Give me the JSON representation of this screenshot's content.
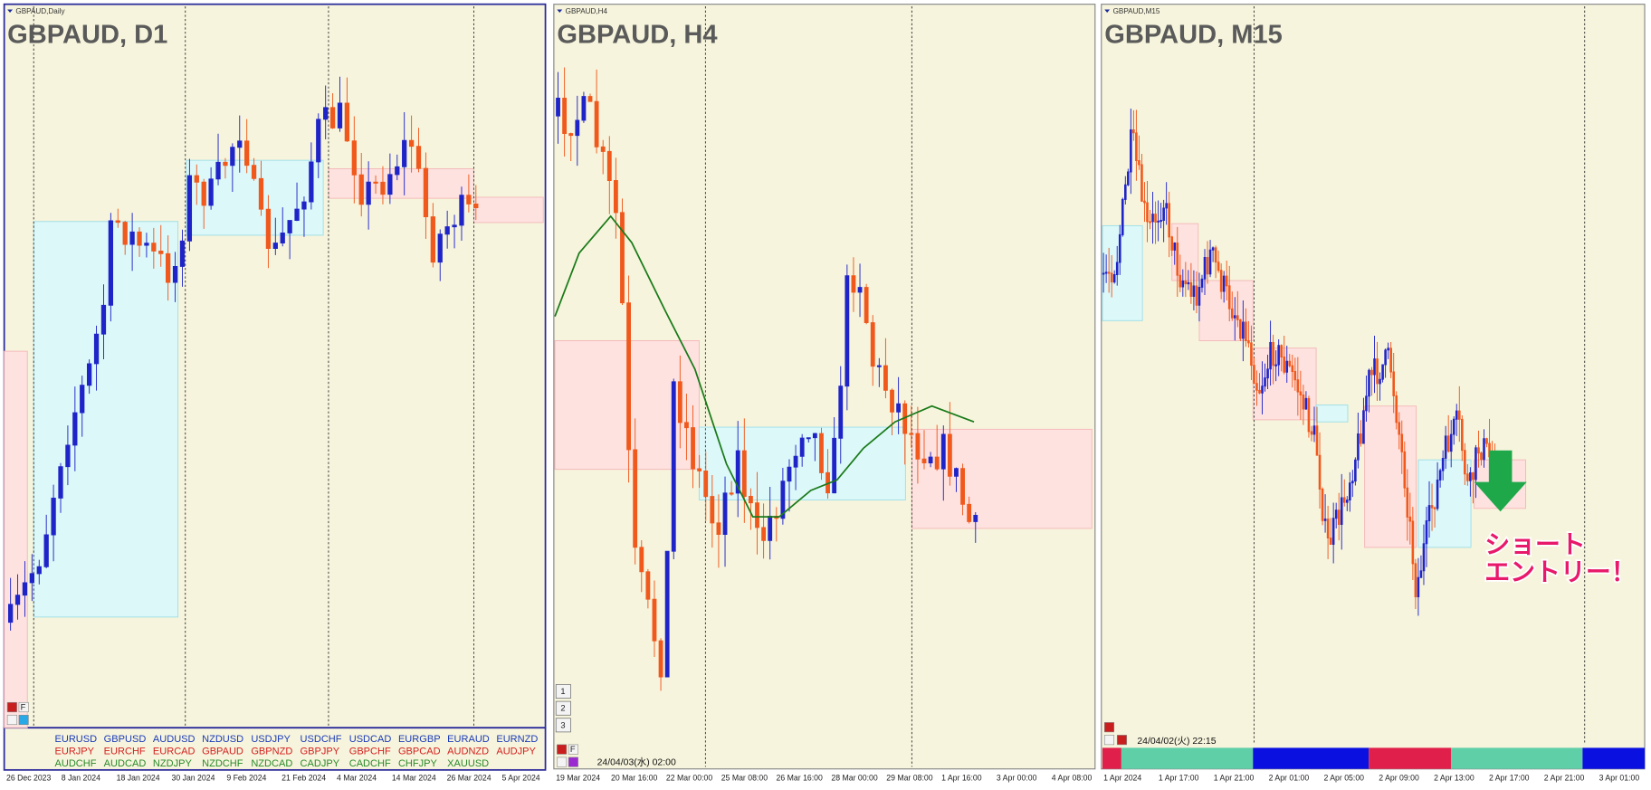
{
  "panels": [
    {
      "tab": "GBPAUD,Daily",
      "title": "GBPAUD, D1",
      "button": "F",
      "dates": [
        "26 Dec 2023",
        "8 Jan 2024",
        "18 Jan 2024",
        "30 Jan 2024",
        "9 Feb 2024",
        "21 Feb 2024",
        "4 Mar 2024",
        "14 Mar 2024",
        "26 Mar 2024",
        "5 Apr 2024"
      ]
    },
    {
      "tab": "GBPAUD,H4",
      "title": "GBPAUD, H4",
      "button": "F",
      "nav": [
        "1",
        "2",
        "3"
      ],
      "stamp": "24/04/03(水) 02:00",
      "dates": [
        "19 Mar 2024",
        "20 Mar 16:00",
        "22 Mar 00:00",
        "25 Mar 08:00",
        "26 Mar 16:00",
        "28 Mar 00:00",
        "29 Mar 08:00",
        "1 Apr 16:00",
        "3 Apr 00:00",
        "4 Apr 08:00"
      ]
    },
    {
      "tab": "GBPAUD,M15",
      "title": "GBPAUD, M15",
      "stamp": "24/04/02(火) 22:15",
      "annotation": [
        "ショート",
        "エントリー！"
      ],
      "dates": [
        "1 Apr 2024",
        "1 Apr 17:00",
        "1 Apr 21:00",
        "2 Apr 01:00",
        "2 Apr 05:00",
        "2 Apr 09:00",
        "2 Apr 13:00",
        "2 Apr 17:00",
        "2 Apr 21:00",
        "3 Apr 01:00"
      ]
    }
  ],
  "symbols": [
    [
      "EURUSD",
      "GBPUSD",
      "AUDUSD",
      "NZDUSD",
      "USDJPY",
      "USDCHF",
      "USDCAD",
      "EURGBP",
      "EURAUD",
      "EURNZD"
    ],
    [
      "EURJPY",
      "EURCHF",
      "EURCAD",
      "GBPAUD",
      "GBPNZD",
      "GBPJPY",
      "GBPCHF",
      "GBPCAD",
      "AUDNZD",
      "AUDJPY"
    ],
    [
      "AUDCHF",
      "AUDCAD",
      "NZDJPY",
      "NZDCHF",
      "NZDCAD",
      "CADJPY",
      "CADCHF",
      "CHFJPY",
      "XAUUSD"
    ]
  ]
}
